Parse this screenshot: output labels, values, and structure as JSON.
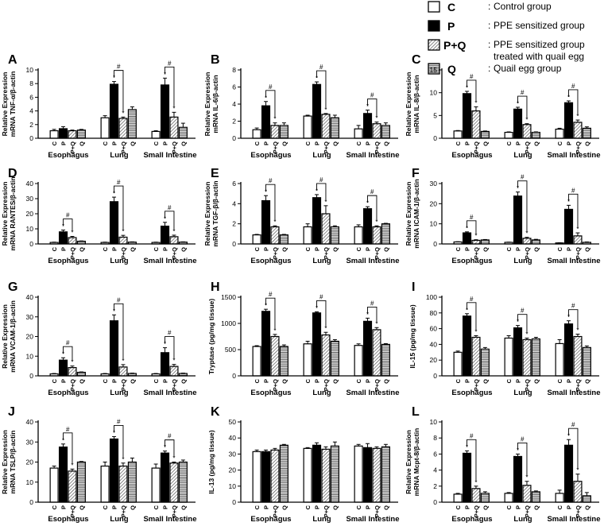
{
  "legend": [
    {
      "code": "C",
      "desc": "Control group",
      "pattern": "white"
    },
    {
      "code": "P",
      "desc": "PPE sensitized group",
      "pattern": "black"
    },
    {
      "code": "P+Q",
      "desc": "PPE sensitized group",
      "desc2": "treated with quail egg",
      "pattern": "diag"
    },
    {
      "code": "Q",
      "desc": "Quail egg group",
      "pattern": "horiz"
    }
  ],
  "colors": {
    "axis": "#000000",
    "fill_P": "#000000",
    "fill_C": "#ffffff",
    "fill_PQ": "#cfcfcf",
    "fill_Q": "#b8b8b8"
  },
  "chart_data": [
    {
      "letter": "A",
      "type": "bar",
      "ylabel": "Relative Expression",
      "ylabel2": "mRNA TNF-α/β-actin",
      "ylim": [
        0,
        10
      ],
      "yticks": [
        0,
        2,
        4,
        6,
        8,
        10
      ],
      "groups": [
        "Esophagus",
        "Lung",
        "Small Intestine"
      ],
      "categories": [
        "C",
        "P",
        "P+Q",
        "Q"
      ],
      "values": [
        [
          1.1,
          1.4,
          1.1,
          1.2
        ],
        [
          3.0,
          7.9,
          2.9,
          4.2
        ],
        [
          1.0,
          7.8,
          3.1,
          1.6
        ]
      ],
      "errors": [
        [
          0.2,
          0.3,
          0.1,
          0.1
        ],
        [
          0.3,
          0.4,
          0.2,
          0.4
        ],
        [
          0.1,
          1.0,
          0.7,
          0.6
        ]
      ],
      "stars": [
        [
          false,
          false,
          false,
          false
        ],
        [
          false,
          true,
          true,
          false
        ],
        [
          false,
          true,
          true,
          false
        ]
      ],
      "hashes": [
        [
          false,
          false
        ],
        [
          true,
          true
        ],
        [
          true,
          true
        ]
      ]
    },
    {
      "letter": "B",
      "type": "bar",
      "ylabel": "Relative Expression",
      "ylabel2": "mRNA IL-6/β-actin",
      "ylim": [
        0,
        8
      ],
      "yticks": [
        0,
        2,
        4,
        6,
        8
      ],
      "groups": [
        "Esophagus",
        "Lung",
        "Small Intestine"
      ],
      "categories": [
        "C",
        "P",
        "P+Q",
        "Q"
      ],
      "values": [
        [
          1.0,
          3.8,
          1.5,
          1.5
        ],
        [
          2.6,
          6.3,
          2.8,
          2.4
        ],
        [
          1.1,
          2.9,
          1.7,
          1.5
        ]
      ],
      "errors": [
        [
          0.2,
          0.5,
          0.3,
          0.3
        ],
        [
          0.1,
          0.3,
          0.1,
          0.3
        ],
        [
          0.4,
          0.4,
          0.2,
          0.3
        ]
      ],
      "stars": [
        [
          false,
          true,
          true,
          false
        ],
        [
          false,
          true,
          true,
          false
        ],
        [
          false,
          true,
          true,
          false
        ]
      ],
      "hashes": [
        [
          true,
          true
        ],
        [
          true,
          true
        ],
        [
          true,
          true
        ]
      ]
    },
    {
      "letter": "C",
      "type": "bar",
      "ylabel": "Relative Expression",
      "ylabel2": "mRNA IL-8/β-actin",
      "ylim": [
        0,
        15
      ],
      "yticks": [
        0,
        5,
        10,
        15
      ],
      "groups": [
        "Esophagus",
        "Lung",
        "Small Intestine"
      ],
      "categories": [
        "C",
        "P",
        "P+Q",
        "Q"
      ],
      "values": [
        [
          1.6,
          9.8,
          6.0,
          1.5
        ],
        [
          1.3,
          6.4,
          3.0,
          1.3
        ],
        [
          2.0,
          7.8,
          3.5,
          2.2
        ]
      ],
      "errors": [
        [
          0.1,
          0.5,
          0.9,
          0.1
        ],
        [
          0.1,
          0.4,
          0.2,
          0.1
        ],
        [
          0.2,
          0.4,
          0.5,
          0.3
        ]
      ],
      "stars": [
        [
          false,
          true,
          true,
          false
        ],
        [
          false,
          true,
          true,
          false
        ],
        [
          false,
          true,
          true,
          false
        ]
      ],
      "hashes": [
        [
          true,
          true
        ],
        [
          true,
          true
        ],
        [
          true,
          true
        ]
      ]
    },
    {
      "letter": "D",
      "type": "bar",
      "ylabel": "Relative Expression",
      "ylabel2": "mRNA RANTES/β-actin",
      "ylim": [
        0,
        40
      ],
      "yticks": [
        0,
        10,
        20,
        30,
        40
      ],
      "groups": [
        "Esophagus",
        "Lung",
        "Small Intestine"
      ],
      "categories": [
        "C",
        "P",
        "P+Q",
        "Q"
      ],
      "values": [
        [
          1.0,
          8.0,
          4.2,
          1.8
        ],
        [
          1.0,
          28.0,
          4.5,
          1.2
        ],
        [
          1.0,
          11.8,
          4.8,
          1.2
        ]
      ],
      "errors": [
        [
          0.2,
          1.2,
          0.8,
          0.2
        ],
        [
          0.2,
          3.0,
          1.2,
          0.2
        ],
        [
          0.2,
          2.5,
          1.0,
          0.2
        ]
      ],
      "stars": [
        [
          false,
          true,
          true,
          false
        ],
        [
          false,
          true,
          true,
          false
        ],
        [
          false,
          true,
          true,
          false
        ]
      ],
      "hashes": [
        [
          true,
          true
        ],
        [
          true,
          true
        ],
        [
          true,
          true
        ]
      ]
    },
    {
      "letter": "E",
      "type": "bar",
      "ylabel": "Relative Expression",
      "ylabel2": "mRNA TGF-β/β-actin",
      "ylim": [
        0,
        6
      ],
      "yticks": [
        0,
        2,
        4,
        6
      ],
      "groups": [
        "Esophagus",
        "Lung",
        "Small Intestine"
      ],
      "categories": [
        "C",
        "P",
        "P+Q",
        "Q"
      ],
      "values": [
        [
          0.9,
          4.3,
          1.7,
          0.9
        ],
        [
          1.7,
          4.6,
          3.0,
          1.7
        ],
        [
          1.7,
          3.5,
          1.7,
          2.0
        ]
      ],
      "errors": [
        [
          0.05,
          0.5,
          0.1,
          0.05
        ],
        [
          0.3,
          0.3,
          0.8,
          0.1
        ],
        [
          0.2,
          0.2,
          0.1,
          0.05
        ]
      ],
      "stars": [
        [
          false,
          true,
          true,
          false
        ],
        [
          false,
          true,
          true,
          false
        ],
        [
          false,
          true,
          true,
          false
        ]
      ],
      "hashes": [
        [
          true,
          true
        ],
        [
          true,
          true
        ],
        [
          true,
          true
        ]
      ]
    },
    {
      "letter": "F",
      "type": "bar",
      "ylabel": "Relative Expression",
      "ylabel2": "mRNA ICAM-1/β-actin",
      "ylim": [
        0,
        30
      ],
      "yticks": [
        0,
        10,
        20,
        30
      ],
      "groups": [
        "Esophagus",
        "Lung",
        "Small Intestine"
      ],
      "categories": [
        "C",
        "P",
        "P+Q",
        "Q"
      ],
      "values": [
        [
          1.0,
          5.5,
          1.8,
          2.0
        ],
        [
          0.8,
          23.8,
          2.8,
          2.0
        ],
        [
          0.5,
          17.2,
          4.0,
          0.8
        ]
      ],
      "errors": [
        [
          0.1,
          0.5,
          0.3,
          0.2
        ],
        [
          0.1,
          2.0,
          0.5,
          0.3
        ],
        [
          0.1,
          2.0,
          1.5,
          0.2
        ]
      ],
      "stars": [
        [
          false,
          true,
          true,
          false
        ],
        [
          false,
          true,
          true,
          false
        ],
        [
          false,
          true,
          true,
          false
        ]
      ],
      "hashes": [
        [
          true,
          true
        ],
        [
          true,
          true
        ],
        [
          true,
          true
        ]
      ]
    },
    {
      "letter": "G",
      "type": "bar",
      "ylabel": "Relative Expression",
      "ylabel2": "mRNA VCAM-1/β-actin",
      "ylim": [
        0,
        40
      ],
      "yticks": [
        0,
        10,
        20,
        30,
        40
      ],
      "groups": [
        "Esophagus",
        "Lung",
        "Small Intestine"
      ],
      "categories": [
        "C",
        "P",
        "P+Q",
        "Q"
      ],
      "values": [
        [
          1.0,
          8.0,
          4.2,
          1.8
        ],
        [
          1.0,
          28.0,
          4.5,
          1.2
        ],
        [
          1.0,
          11.8,
          4.8,
          1.2
        ]
      ],
      "errors": [
        [
          0.2,
          1.2,
          0.8,
          0.2
        ],
        [
          0.2,
          3.0,
          1.2,
          0.2
        ],
        [
          0.2,
          2.5,
          1.0,
          0.2
        ]
      ],
      "stars": [
        [
          false,
          true,
          true,
          false
        ],
        [
          false,
          true,
          true,
          false
        ],
        [
          false,
          true,
          true,
          false
        ]
      ],
      "hashes": [
        [
          true,
          true
        ],
        [
          true,
          true
        ],
        [
          true,
          true
        ]
      ]
    },
    {
      "letter": "H",
      "type": "bar",
      "ylabel": "Tryptase (pg/mg tissue)",
      "ylabel2": "",
      "ylim": [
        0,
        1500
      ],
      "yticks": [
        0,
        500,
        1000,
        1500
      ],
      "groups": [
        "Esophagus",
        "Lung",
        "Small Intestine"
      ],
      "categories": [
        "C",
        "P",
        "P+Q",
        "Q"
      ],
      "values": [
        [
          560,
          1230,
          750,
          560
        ],
        [
          610,
          1200,
          780,
          660
        ],
        [
          580,
          1040,
          880,
          600
        ]
      ],
      "errors": [
        [
          15,
          40,
          40,
          30
        ],
        [
          50,
          20,
          50,
          30
        ],
        [
          30,
          60,
          40,
          15
        ]
      ],
      "stars": [
        [
          false,
          true,
          true,
          false
        ],
        [
          false,
          true,
          true,
          false
        ],
        [
          false,
          true,
          true,
          false
        ]
      ],
      "hashes": [
        [
          true,
          true
        ],
        [
          true,
          true
        ],
        [
          true,
          true
        ]
      ]
    },
    {
      "letter": "I",
      "type": "bar",
      "ylabel": "IL-15 (pg/mg tissue)",
      "ylabel2": "",
      "ylim": [
        0,
        100
      ],
      "yticks": [
        0,
        20,
        40,
        60,
        80,
        100
      ],
      "groups": [
        "Esophagus",
        "Lung",
        "Small Intestine"
      ],
      "categories": [
        "C",
        "P",
        "P+Q",
        "Q"
      ],
      "values": [
        [
          30,
          76,
          49,
          34
        ],
        [
          48,
          61,
          46,
          47
        ],
        [
          41,
          66,
          50,
          36
        ]
      ],
      "errors": [
        [
          1.5,
          3,
          2,
          2
        ],
        [
          3,
          3,
          2,
          2
        ],
        [
          5,
          4,
          3,
          2
        ]
      ],
      "stars": [
        [
          false,
          true,
          true,
          false
        ],
        [
          false,
          true,
          true,
          false
        ],
        [
          false,
          true,
          true,
          false
        ]
      ],
      "hashes": [
        [
          true,
          true
        ],
        [
          true,
          true
        ],
        [
          true,
          true
        ]
      ]
    },
    {
      "letter": "J",
      "type": "bar",
      "ylabel": "Relative Expression",
      "ylabel2": "mRNA TSLP/β-actin",
      "ylim": [
        0,
        40
      ],
      "yticks": [
        0,
        10,
        20,
        30,
        40
      ],
      "groups": [
        "Esophagus",
        "Lung",
        "Small Intestine"
      ],
      "categories": [
        "C",
        "P",
        "P+Q",
        "Q"
      ],
      "values": [
        [
          17,
          27.5,
          15.5,
          20
        ],
        [
          18,
          31.5,
          18,
          20
        ],
        [
          17,
          24.5,
          19.5,
          20
        ]
      ],
      "errors": [
        [
          1,
          1.5,
          1,
          0.3
        ],
        [
          2,
          1.2,
          1.5,
          2
        ],
        [
          2,
          1,
          0.5,
          1
        ]
      ],
      "stars": [
        [
          false,
          true,
          true,
          false
        ],
        [
          false,
          true,
          true,
          false
        ],
        [
          false,
          true,
          true,
          false
        ]
      ],
      "hashes": [
        [
          true,
          true
        ],
        [
          true,
          true
        ],
        [
          true,
          true
        ]
      ]
    },
    {
      "letter": "K",
      "type": "bar",
      "ylabel": "IL-13 (pg/mg tissue)",
      "ylabel2": "",
      "ylim": [
        0,
        50
      ],
      "yticks": [
        0,
        10,
        20,
        30,
        40,
        50
      ],
      "groups": [
        "Esophagus",
        "Lung",
        "Small Intestine"
      ],
      "categories": [
        "C",
        "P",
        "P+Q",
        "Q"
      ],
      "values": [
        [
          31.5,
          31.5,
          32.5,
          35.5
        ],
        [
          33.5,
          35.5,
          33,
          35
        ],
        [
          35,
          34,
          33.5,
          34.5
        ]
      ],
      "errors": [
        [
          1,
          1,
          1,
          0.5
        ],
        [
          0.5,
          1.5,
          1.5,
          2.5
        ],
        [
          1,
          2.5,
          1,
          1.5
        ]
      ],
      "stars": [
        [
          false,
          false,
          false,
          false
        ],
        [
          false,
          false,
          false,
          false
        ],
        [
          false,
          false,
          false,
          false
        ]
      ],
      "hashes": [
        [
          false,
          false
        ],
        [
          false,
          false
        ],
        [
          false,
          false
        ]
      ]
    },
    {
      "letter": "L",
      "type": "bar",
      "ylabel": "Relative Expression",
      "ylabel2": "mRNA Mcpt-8/β-actin",
      "ylim": [
        0,
        10
      ],
      "yticks": [
        0,
        2,
        4,
        6,
        8,
        10
      ],
      "groups": [
        "Esophagus",
        "Lung",
        "Small Intestine"
      ],
      "categories": [
        "C",
        "P",
        "P+Q",
        "Q"
      ],
      "values": [
        [
          1.0,
          6.1,
          1.7,
          1.1
        ],
        [
          1.1,
          5.7,
          2.1,
          1.3
        ],
        [
          1.1,
          7.1,
          2.6,
          0.8
        ]
      ],
      "errors": [
        [
          0.1,
          0.3,
          0.3,
          0.2
        ],
        [
          0.1,
          0.3,
          0.5,
          0.1
        ],
        [
          0.4,
          0.7,
          0.9,
          0.4
        ]
      ],
      "stars": [
        [
          false,
          true,
          true,
          false
        ],
        [
          false,
          true,
          true,
          false
        ],
        [
          false,
          true,
          true,
          false
        ]
      ],
      "hashes": [
        [
          true,
          true
        ],
        [
          true,
          true
        ],
        [
          true,
          true
        ]
      ]
    }
  ]
}
